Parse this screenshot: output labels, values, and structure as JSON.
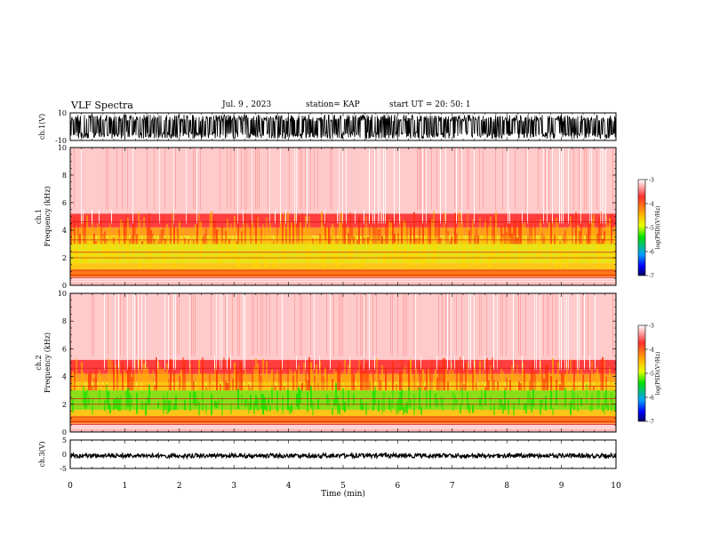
{
  "header": {
    "title": "VLF Spectra",
    "date": "Jul. 9 , 2023",
    "station": "station= KAP",
    "start": "start UT = 20: 50: 1"
  },
  "chart_data": [
    {
      "type": "line",
      "title": "",
      "ylabel": "ch.1(V)",
      "ylim": [
        -10,
        10
      ],
      "yticks": [
        "10",
        "-10"
      ],
      "xlim": [
        0,
        10
      ],
      "note": "dense black waveform"
    },
    {
      "type": "heatmap",
      "ylabel": "ch.1 Frequency (kHz)",
      "ylim": [
        0,
        10
      ],
      "yticks": [
        "0",
        "2",
        "4",
        "6",
        "8",
        "10"
      ],
      "xlim": [
        0,
        10
      ],
      "colorbar": {
        "label": "log(PSD)(V²/Hz)",
        "range": [
          -7,
          -3
        ],
        "ticks": [
          "-3",
          "-4",
          "-5",
          "-6",
          "-7"
        ]
      }
    },
    {
      "type": "heatmap",
      "ylabel": "ch.2 Frequency (kHz)",
      "ylim": [
        0,
        10
      ],
      "yticks": [
        "0",
        "2",
        "4",
        "6",
        "8",
        "10"
      ],
      "xlim": [
        0,
        10
      ],
      "colorbar": {
        "label": "log(PSD)(V²/Hz)",
        "range": [
          -7,
          -3
        ],
        "ticks": [
          "-3",
          "-4",
          "-5",
          "-6",
          "-7"
        ]
      }
    },
    {
      "type": "line",
      "ylabel": "ch.3(V)",
      "ylim": [
        -5,
        5
      ],
      "yticks": [
        "5",
        "0",
        "-5"
      ],
      "xlabel": "Time (min)",
      "xlim": [
        0,
        10
      ],
      "xticks": [
        "0",
        "1",
        "2",
        "3",
        "4",
        "5",
        "6",
        "7",
        "8",
        "9",
        "10"
      ]
    }
  ]
}
